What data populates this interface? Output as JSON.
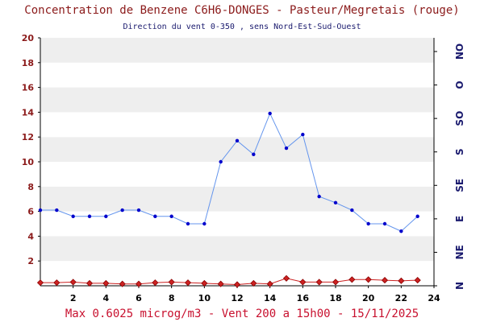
{
  "chart_data": {
    "type": "line",
    "title": "Concentration de Benzene C6H6-DONGES - Pasteur/Megretais (rouge)",
    "subtitle": "Direction du vent 0-350 , sens Nord-Est-Sud-Ouest",
    "footer": "Max 0.6025 microg/m3 - Vent 200  a 15h00 - 15/11/2025",
    "x_ticks": [
      2,
      4,
      6,
      8,
      10,
      12,
      14,
      16,
      18,
      20,
      22,
      24
    ],
    "y_ticks": [
      2,
      4,
      6,
      8,
      10,
      12,
      14,
      16,
      18,
      20
    ],
    "xlim": [
      0,
      24
    ],
    "ylim": [
      0,
      20
    ],
    "wind_axis_labels": [
      "N",
      "NE",
      "E",
      "SE",
      "S",
      "SO",
      "O",
      "NO"
    ],
    "grid": "horizontal alternating bands",
    "series": [
      {
        "color": "#cc2222",
        "marker": "diamond",
        "x": [
          0,
          1,
          2,
          3,
          4,
          5,
          6,
          7,
          8,
          9,
          10,
          11,
          12,
          13,
          14,
          15,
          16,
          17,
          18,
          19,
          20,
          21,
          22,
          23
        ],
        "values": [
          0.25,
          0.25,
          0.3,
          0.2,
          0.2,
          0.15,
          0.15,
          0.25,
          0.3,
          0.25,
          0.2,
          0.15,
          0.1,
          0.2,
          0.15,
          0.6,
          0.3,
          0.3,
          0.3,
          0.5,
          0.5,
          0.45,
          0.4,
          0.45
        ]
      },
      {
        "color": "#6495ed",
        "marker": "dot",
        "x": [
          0,
          1,
          2,
          3,
          4,
          5,
          6,
          7,
          8,
          9,
          10,
          11,
          12,
          13,
          14,
          15,
          16,
          17,
          18,
          19,
          20,
          21,
          22,
          23
        ],
        "values": [
          6.1,
          6.1,
          5.6,
          5.6,
          5.6,
          6.1,
          6.1,
          5.6,
          5.6,
          5.0,
          5.0,
          10.0,
          11.7,
          10.6,
          13.9,
          11.1,
          12.2,
          7.2,
          6.7,
          6.1,
          5.0,
          5.0,
          4.4,
          5.6
        ],
        "axis": "wind_direction"
      }
    ]
  }
}
